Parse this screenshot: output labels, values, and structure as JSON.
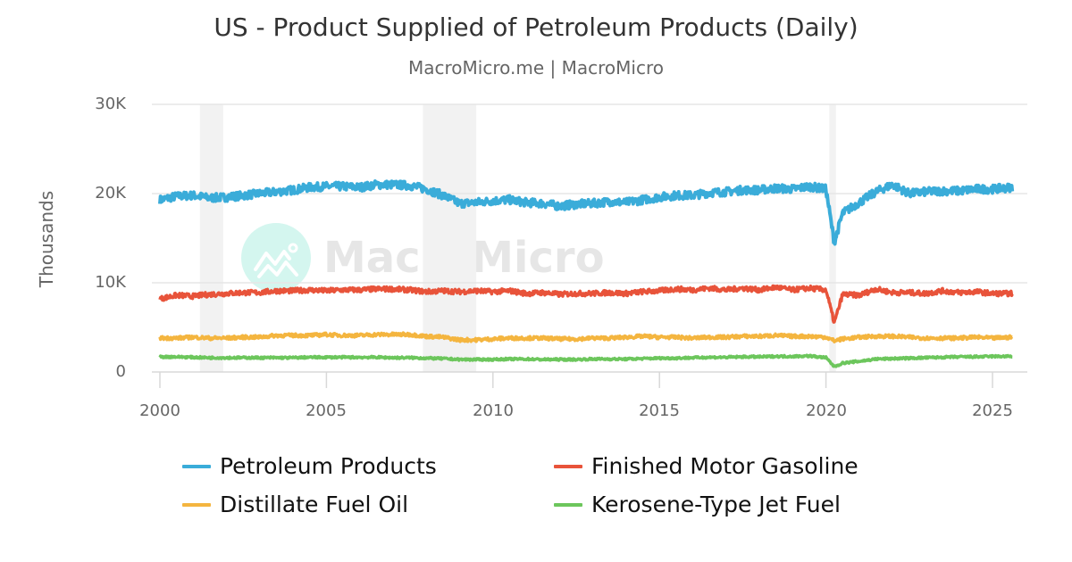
{
  "header": {
    "title": "US - Product Supplied of Petroleum Products (Daily)",
    "subtitle": "MacroMicro.me | MacroMicro"
  },
  "watermark": {
    "text": "MacroMicro",
    "icon": "macromicro-logo-icon"
  },
  "axes": {
    "ylabel": "Thousands",
    "yticks": [
      "0",
      "10K",
      "20K",
      "30K"
    ],
    "xticks": [
      "2000",
      "2005",
      "2010",
      "2015",
      "2020",
      "2025"
    ]
  },
  "legend": [
    {
      "label": "Petroleum Products",
      "color": "#3aacd9"
    },
    {
      "label": "Finished Motor Gasoline",
      "color": "#e8533a"
    },
    {
      "label": "Distillate Fuel Oil",
      "color": "#f4b53f"
    },
    {
      "label": "Kerosene-Type Jet Fuel",
      "color": "#6cc65c"
    }
  ],
  "colors": {
    "grid": "#e6e6e6",
    "recession": "#f2f2f2",
    "axis_text": "#666666",
    "title": "#333333"
  },
  "chart_data": {
    "type": "line",
    "title": "US - Product Supplied of Petroleum Products (Daily)",
    "subtitle": "MacroMicro.me | MacroMicro",
    "xlabel": "",
    "ylabel": "Thousands",
    "ylim": [
      0,
      30000
    ],
    "xlim": [
      2000,
      2025.8
    ],
    "grid": true,
    "legend_position": "bottom",
    "recession_bands": [
      [
        2001.2,
        2001.9
      ],
      [
        2007.9,
        2009.5
      ],
      [
        2020.1,
        2020.3
      ]
    ],
    "x": [
      2000,
      2000.5,
      2001,
      2001.5,
      2002,
      2002.5,
      2003,
      2003.5,
      2004,
      2004.5,
      2005,
      2005.5,
      2006,
      2006.5,
      2007,
      2007.5,
      2008,
      2008.5,
      2009,
      2009.5,
      2010,
      2010.5,
      2011,
      2011.5,
      2012,
      2012.5,
      2013,
      2013.5,
      2014,
      2014.5,
      2015,
      2015.5,
      2016,
      2016.5,
      2017,
      2017.5,
      2018,
      2018.5,
      2019,
      2019.5,
      2020,
      2020.25,
      2020.5,
      2021,
      2021.5,
      2022,
      2022.5,
      2023,
      2023.5,
      2024,
      2024.5,
      2025,
      2025.6
    ],
    "series": [
      {
        "name": "Petroleum Products",
        "color": "#3aacd9",
        "values": [
          19300,
          19700,
          19800,
          19500,
          19600,
          19800,
          20000,
          20200,
          20400,
          20700,
          20800,
          20800,
          20700,
          21000,
          21000,
          20900,
          20500,
          19800,
          18900,
          19000,
          19200,
          19300,
          19000,
          18900,
          18600,
          18800,
          18900,
          19100,
          19000,
          19300,
          19600,
          19800,
          19800,
          20100,
          20200,
          20400,
          20400,
          20600,
          20500,
          20800,
          20500,
          14500,
          17800,
          19000,
          20200,
          21000,
          20000,
          20200,
          20300,
          20300,
          20500,
          20500,
          20700
        ]
      },
      {
        "name": "Finished Motor Gasoline",
        "color": "#e8533a",
        "values": [
          8200,
          8600,
          8500,
          8700,
          8800,
          8900,
          8900,
          9100,
          9100,
          9200,
          9100,
          9200,
          9200,
          9300,
          9300,
          9200,
          9000,
          9100,
          9000,
          9100,
          9000,
          9100,
          8800,
          8900,
          8700,
          8800,
          8800,
          8900,
          8800,
          9000,
          9100,
          9300,
          9200,
          9400,
          9200,
          9400,
          9200,
          9500,
          9200,
          9400,
          9200,
          5500,
          8700,
          8600,
          9300,
          8900,
          8900,
          8800,
          9100,
          8900,
          9000,
          8800,
          8800
        ]
      },
      {
        "name": "Distillate Fuel Oil",
        "color": "#f4b53f",
        "values": [
          3800,
          3800,
          3900,
          3800,
          3800,
          3900,
          3900,
          4100,
          4100,
          4100,
          4200,
          4100,
          4100,
          4200,
          4200,
          4200,
          4000,
          3900,
          3600,
          3600,
          3700,
          3800,
          3800,
          3800,
          3700,
          3700,
          3800,
          3800,
          3900,
          4000,
          3900,
          3900,
          3800,
          3900,
          3900,
          4000,
          4000,
          4100,
          4000,
          4000,
          3900,
          3500,
          3700,
          3900,
          4000,
          4000,
          3900,
          3800,
          3800,
          3800,
          3900,
          3800,
          3900
        ]
      },
      {
        "name": "Kerosene-Type Jet Fuel",
        "color": "#6cc65c",
        "values": [
          1700,
          1700,
          1650,
          1600,
          1600,
          1600,
          1600,
          1600,
          1600,
          1650,
          1650,
          1650,
          1650,
          1650,
          1600,
          1600,
          1550,
          1500,
          1400,
          1400,
          1400,
          1450,
          1450,
          1400,
          1400,
          1400,
          1450,
          1450,
          1450,
          1500,
          1550,
          1550,
          1600,
          1650,
          1650,
          1700,
          1700,
          1750,
          1750,
          1800,
          1600,
          600,
          1000,
          1200,
          1450,
          1500,
          1550,
          1600,
          1650,
          1700,
          1700,
          1750,
          1750
        ]
      }
    ]
  }
}
